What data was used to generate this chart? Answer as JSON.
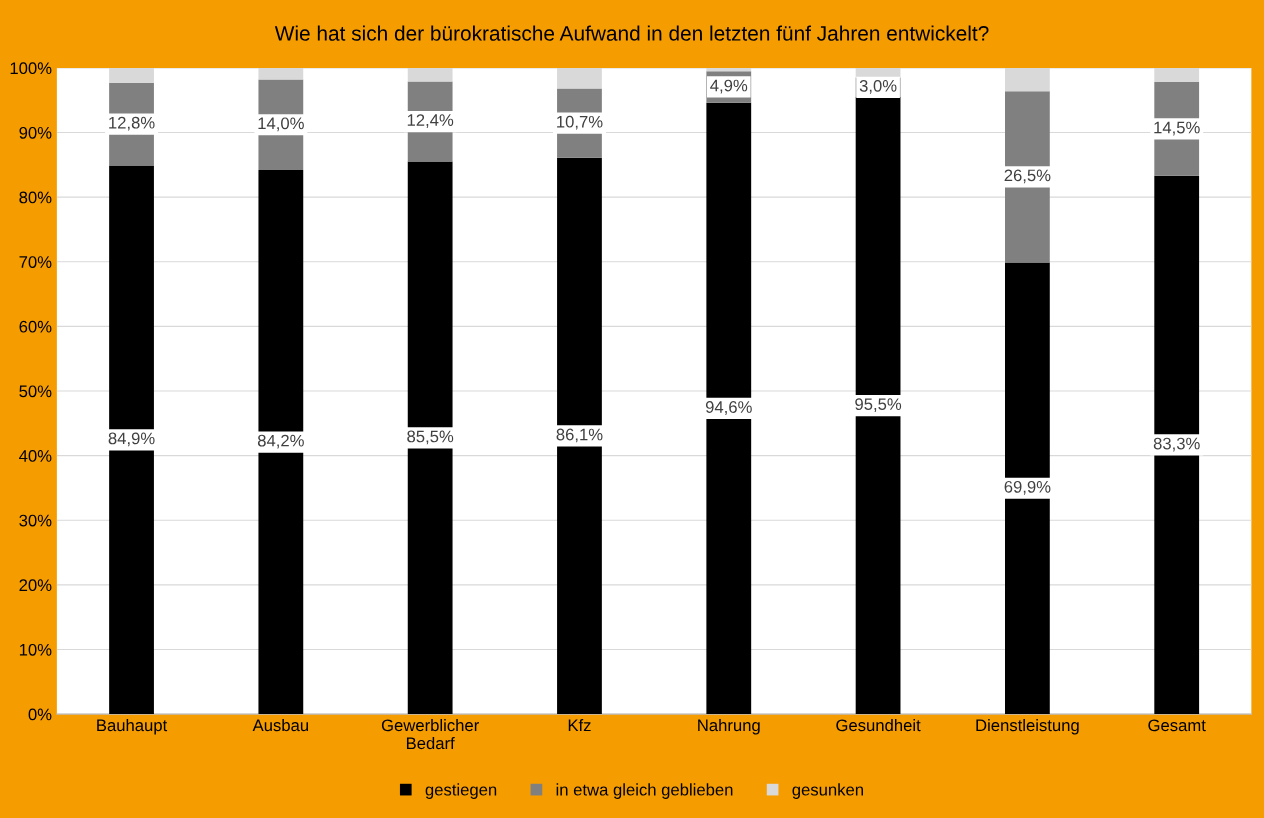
{
  "chart_data": {
    "type": "bar",
    "stacked": true,
    "title": "Wie hat sich der bürokratische Aufwand in den letzten fünf Jahren entwickelt?",
    "categories": [
      "Bauhaupt",
      "Ausbau",
      "Gewerblicher\nBedarf",
      "Kfz",
      "Nahrung",
      "Gesundheit",
      "Dienstleistung",
      "Gesamt"
    ],
    "series": [
      {
        "name": "gestiegen",
        "color": "#000000",
        "values": [
          84.9,
          84.2,
          85.5,
          86.1,
          94.6,
          95.5,
          69.9,
          83.3
        ],
        "value_labels": [
          "84,9%",
          "84,2%",
          "85,5%",
          "86,1%",
          "94,6%",
          "95,5%",
          "69,9%",
          "83,3%"
        ]
      },
      {
        "name": "in etwa gleich geblieben",
        "color": "#808080",
        "values": [
          12.8,
          14.0,
          12.4,
          10.7,
          4.9,
          3.0,
          26.5,
          14.5
        ],
        "value_labels": [
          "12,8%",
          "14,0%",
          "12,4%",
          "10,7%",
          "4,9%",
          "3,0%",
          "26,5%",
          "14,5%"
        ]
      },
      {
        "name": "gesunken",
        "color": "#d9d9d9",
        "values": [
          2.3,
          1.8,
          2.1,
          3.2,
          0.5,
          1.5,
          3.6,
          2.2
        ]
      }
    ],
    "ylim": [
      0,
      100
    ],
    "yticks": [
      {
        "value": 0,
        "label": "0%"
      },
      {
        "value": 10,
        "label": "10%"
      },
      {
        "value": 20,
        "label": "20%"
      },
      {
        "value": 30,
        "label": "30%"
      },
      {
        "value": 40,
        "label": "40%"
      },
      {
        "value": 50,
        "label": "50%"
      },
      {
        "value": 60,
        "label": "60%"
      },
      {
        "value": 70,
        "label": "70%"
      },
      {
        "value": 80,
        "label": "80%"
      },
      {
        "value": 90,
        "label": "90%"
      },
      {
        "value": 100,
        "label": "100%"
      }
    ],
    "grid": "y",
    "legend": "bottom"
  }
}
